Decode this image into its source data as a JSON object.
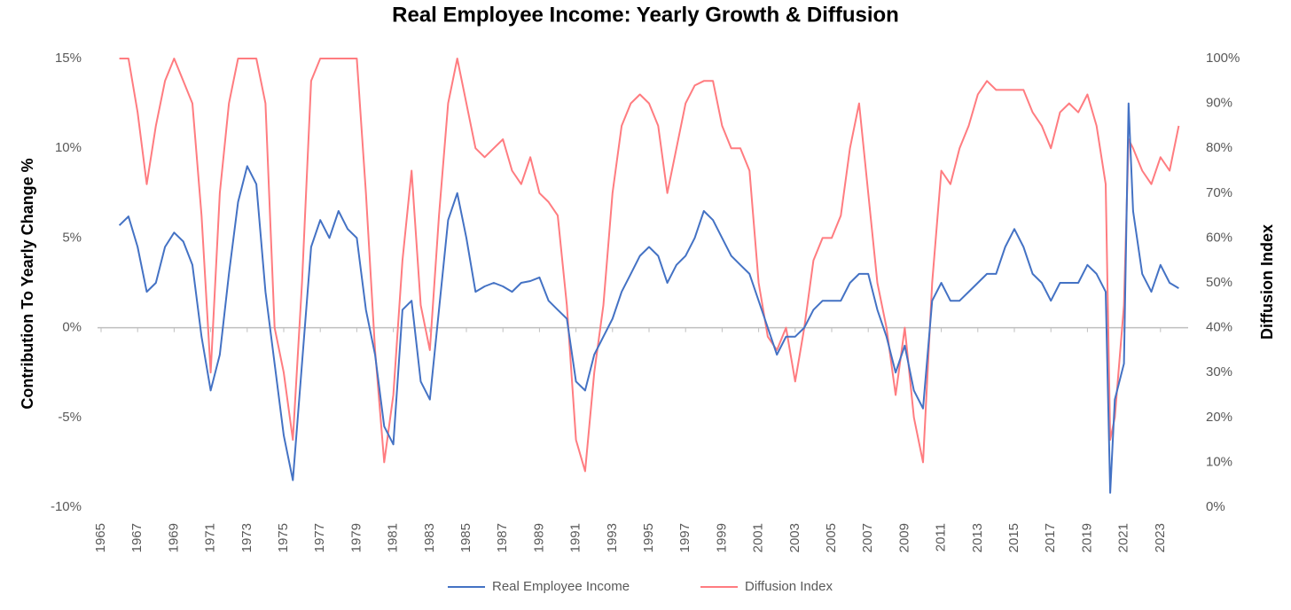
{
  "chart_data": {
    "type": "line",
    "title": "Real Employee Income: Yearly Growth & Diffusion",
    "y_label": "Contribution To Yearly Change %",
    "y2_label": "Diffusion Index",
    "xlim": [
      1965,
      2025
    ],
    "xticks": [
      1965,
      1967,
      1969,
      1971,
      1973,
      1975,
      1977,
      1979,
      1981,
      1983,
      1985,
      1987,
      1989,
      1991,
      1993,
      1995,
      1997,
      1999,
      2001,
      2003,
      2005,
      2007,
      2009,
      2011,
      2013,
      2015,
      2017,
      2019,
      2021,
      2023
    ],
    "ylim": [
      -10,
      15
    ],
    "yticks": [
      {
        "value": -10,
        "label": "-10%"
      },
      {
        "value": -5,
        "label": "-5%"
      },
      {
        "value": 0,
        "label": "0%"
      },
      {
        "value": 5,
        "label": "5%"
      },
      {
        "value": 10,
        "label": "10%"
      },
      {
        "value": 15,
        "label": "15%"
      }
    ],
    "y2lim": [
      0,
      100
    ],
    "y2ticks": [
      {
        "value": 0,
        "label": "0%"
      },
      {
        "value": 10,
        "label": "10%"
      },
      {
        "value": 20,
        "label": "20%"
      },
      {
        "value": 30,
        "label": "30%"
      },
      {
        "value": 40,
        "label": "40%"
      },
      {
        "value": 50,
        "label": "50%"
      },
      {
        "value": 60,
        "label": "60%"
      },
      {
        "value": 70,
        "label": "70%"
      },
      {
        "value": 80,
        "label": "80%"
      },
      {
        "value": 90,
        "label": "90%"
      },
      {
        "value": 100,
        "label": "100%"
      }
    ],
    "legend": "bottom",
    "x": [
      1966,
      1966.5,
      1967,
      1967.5,
      1968,
      1968.5,
      1969,
      1969.5,
      1970,
      1970.5,
      1971,
      1971.5,
      1972,
      1972.5,
      1973,
      1973.5,
      1974,
      1974.5,
      1975,
      1975.5,
      1976,
      1976.5,
      1977,
      1977.5,
      1978,
      1978.5,
      1979,
      1979.5,
      1980,
      1980.5,
      1981,
      1981.5,
      1982,
      1982.5,
      1983,
      1983.5,
      1984,
      1984.5,
      1985,
      1985.5,
      1986,
      1986.5,
      1987,
      1987.5,
      1988,
      1988.5,
      1989,
      1989.5,
      1990,
      1990.5,
      1991,
      1991.5,
      1992,
      1992.5,
      1993,
      1993.5,
      1994,
      1994.5,
      1995,
      1995.5,
      1996,
      1996.5,
      1997,
      1997.5,
      1998,
      1998.5,
      1999,
      1999.5,
      2000,
      2000.5,
      2001,
      2001.5,
      2002,
      2002.5,
      2003,
      2003.5,
      2004,
      2004.5,
      2005,
      2005.5,
      2006,
      2006.5,
      2007,
      2007.5,
      2008,
      2008.5,
      2009,
      2009.5,
      2010,
      2010.5,
      2011,
      2011.5,
      2012,
      2012.5,
      2013,
      2013.5,
      2014,
      2014.5,
      2015,
      2015.5,
      2016,
      2016.5,
      2017,
      2017.5,
      2018,
      2018.5,
      2019,
      2019.5,
      2020,
      2020.25,
      2020.5,
      2021,
      2021.25,
      2021.5,
      2022,
      2022.5,
      2023,
      2023.5,
      2024
    ],
    "series": [
      {
        "name": "Real Employee Income",
        "color": "#4472c4",
        "values": [
          5.7,
          6.2,
          4.5,
          2.0,
          2.5,
          4.5,
          5.3,
          4.8,
          3.5,
          -0.5,
          -3.5,
          -1.5,
          3,
          7,
          9,
          8,
          2,
          -2,
          -6,
          -8.5,
          -2,
          4.5,
          6,
          5,
          6.5,
          5.5,
          5,
          1,
          -1.5,
          -5.5,
          -6.5,
          1,
          1.5,
          -3,
          -4,
          1,
          6,
          7.5,
          5,
          2,
          2.3,
          2.5,
          2.3,
          2,
          2.5,
          2.6,
          2.8,
          1.5,
          1,
          0.5,
          -3,
          -3.5,
          -1.5,
          -0.5,
          0.5,
          2,
          3,
          4,
          4.5,
          4,
          2.5,
          3.5,
          4,
          5,
          6.5,
          6,
          5,
          4,
          3.5,
          3,
          1.5,
          0,
          -1.5,
          -0.5,
          -0.5,
          0,
          1,
          1.5,
          1.5,
          1.5,
          2.5,
          3,
          3,
          1,
          -0.5,
          -2.5,
          -1,
          -3.5,
          -4.5,
          1.5,
          2.5,
          1.5,
          1.5,
          2,
          2.5,
          3,
          3,
          4.5,
          5.5,
          4.5,
          3,
          2.5,
          1.5,
          2.5,
          2.5,
          2.5,
          3.5,
          3,
          2,
          -9.2,
          -4,
          -2,
          12.5,
          6.5,
          3,
          2,
          3.5,
          2.5,
          2.2
        ]
      },
      {
        "name": "Diffusion Index",
        "color": "#ff7c80",
        "axis": "y2",
        "values": [
          100,
          100,
          88,
          72,
          85,
          95,
          100,
          95,
          90,
          65,
          30,
          70,
          90,
          100,
          100,
          100,
          90,
          40,
          30,
          15,
          50,
          95,
          100,
          100,
          100,
          100,
          100,
          70,
          35,
          10,
          25,
          55,
          75,
          45,
          35,
          65,
          90,
          100,
          90,
          80,
          78,
          80,
          82,
          75,
          72,
          78,
          70,
          68,
          65,
          45,
          15,
          8,
          30,
          45,
          70,
          85,
          90,
          92,
          90,
          85,
          70,
          80,
          90,
          94,
          95,
          95,
          85,
          80,
          80,
          75,
          50,
          38,
          35,
          40,
          28,
          40,
          55,
          60,
          60,
          65,
          80,
          90,
          70,
          50,
          40,
          25,
          40,
          20,
          10,
          50,
          75,
          72,
          80,
          85,
          92,
          95,
          93,
          93,
          93,
          93,
          88,
          85,
          80,
          88,
          90,
          88,
          92,
          85,
          72,
          15,
          20,
          45,
          82,
          80,
          75,
          72,
          78,
          75,
          85
        ]
      }
    ]
  }
}
